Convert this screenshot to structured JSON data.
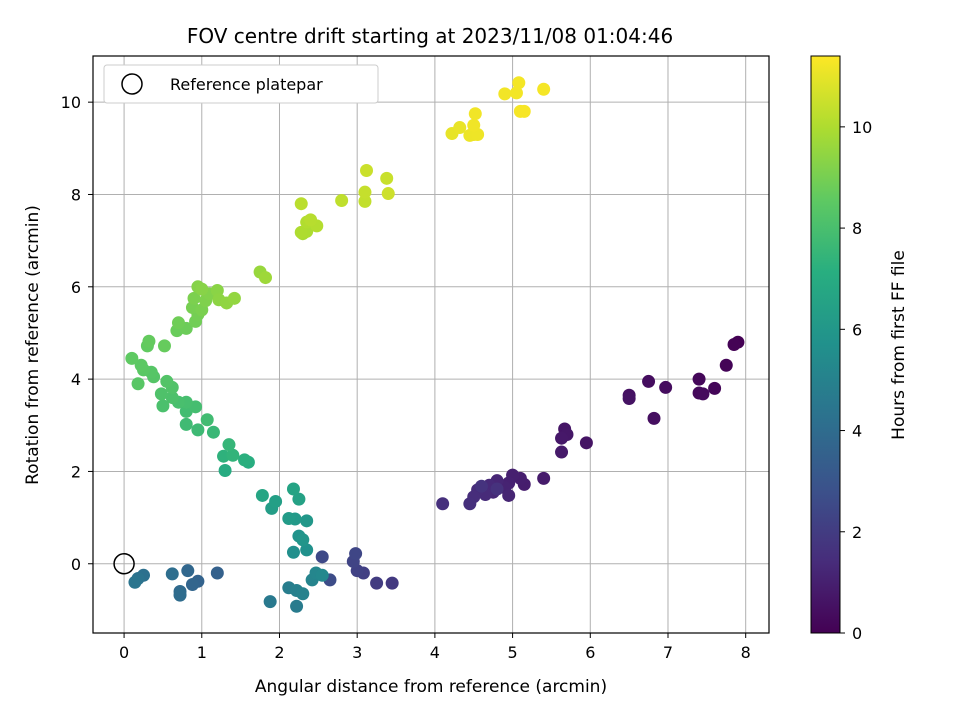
{
  "chart_data": {
    "type": "scatter",
    "title": "FOV centre drift starting at 2023/11/08 01:04:46",
    "xlabel": "Angular distance from reference (arcmin)",
    "ylabel": "Rotation from reference (arcmin)",
    "xlim": [
      -0.4,
      8.3
    ],
    "ylim": [
      -1.5,
      11.0
    ],
    "xticks": [
      "0",
      "1",
      "2",
      "3",
      "4",
      "5",
      "6",
      "7",
      "8"
    ],
    "yticks": [
      "0",
      "2",
      "4",
      "6",
      "8",
      "10"
    ],
    "grid": true,
    "legend": {
      "position": "top-left",
      "entries": [
        "Reference platepar"
      ]
    },
    "reference_point": {
      "x": 0,
      "y": 0
    },
    "colorbar": {
      "label": "Hours from first FF file",
      "colormap": "viridis",
      "range": [
        0,
        11.4
      ],
      "ticks": [
        "0",
        "2",
        "4",
        "6",
        "8",
        "10"
      ]
    },
    "points": [
      {
        "x": 7.9,
        "y": 4.8,
        "h": 0.0
      },
      {
        "x": 7.85,
        "y": 4.75,
        "h": 0.05
      },
      {
        "x": 7.75,
        "y": 4.3,
        "h": 0.1
      },
      {
        "x": 7.6,
        "y": 3.8,
        "h": 0.15
      },
      {
        "x": 7.4,
        "y": 4.0,
        "h": 0.2
      },
      {
        "x": 7.4,
        "y": 3.7,
        "h": 0.25
      },
      {
        "x": 7.45,
        "y": 3.68,
        "h": 0.3
      },
      {
        "x": 6.97,
        "y": 3.82,
        "h": 0.35
      },
      {
        "x": 6.75,
        "y": 3.95,
        "h": 0.4
      },
      {
        "x": 6.82,
        "y": 3.15,
        "h": 0.45
      },
      {
        "x": 6.5,
        "y": 3.65,
        "h": 0.5
      },
      {
        "x": 6.5,
        "y": 3.58,
        "h": 0.55
      },
      {
        "x": 5.95,
        "y": 2.62,
        "h": 0.6
      },
      {
        "x": 5.67,
        "y": 2.92,
        "h": 0.65
      },
      {
        "x": 5.7,
        "y": 2.8,
        "h": 0.7
      },
      {
        "x": 5.63,
        "y": 2.72,
        "h": 0.75
      },
      {
        "x": 5.63,
        "y": 2.42,
        "h": 0.8
      },
      {
        "x": 5.4,
        "y": 1.85,
        "h": 0.85
      },
      {
        "x": 5.15,
        "y": 1.72,
        "h": 0.9
      },
      {
        "x": 5.1,
        "y": 1.85,
        "h": 0.95
      },
      {
        "x": 5.0,
        "y": 1.92,
        "h": 1.0
      },
      {
        "x": 4.95,
        "y": 1.75,
        "h": 1.05
      },
      {
        "x": 4.9,
        "y": 1.65,
        "h": 1.1
      },
      {
        "x": 4.95,
        "y": 1.48,
        "h": 1.15
      },
      {
        "x": 4.8,
        "y": 1.8,
        "h": 1.2
      },
      {
        "x": 4.75,
        "y": 1.55,
        "h": 1.25
      },
      {
        "x": 4.7,
        "y": 1.7,
        "h": 1.3
      },
      {
        "x": 4.65,
        "y": 1.5,
        "h": 1.35
      },
      {
        "x": 4.55,
        "y": 1.6,
        "h": 1.4
      },
      {
        "x": 4.5,
        "y": 1.45,
        "h": 1.45
      },
      {
        "x": 4.45,
        "y": 1.3,
        "h": 1.5
      },
      {
        "x": 4.1,
        "y": 1.3,
        "h": 1.55
      },
      {
        "x": 4.8,
        "y": 1.62,
        "h": 1.6
      },
      {
        "x": 4.6,
        "y": 1.68,
        "h": 1.65
      },
      {
        "x": 3.45,
        "y": -0.42,
        "h": 1.9
      },
      {
        "x": 3.25,
        "y": -0.42,
        "h": 2.0
      },
      {
        "x": 3.08,
        "y": -0.2,
        "h": 2.1
      },
      {
        "x": 3.0,
        "y": -0.15,
        "h": 2.2
      },
      {
        "x": 2.95,
        "y": 0.05,
        "h": 2.3
      },
      {
        "x": 2.98,
        "y": 0.22,
        "h": 2.4
      },
      {
        "x": 2.55,
        "y": 0.15,
        "h": 2.5
      },
      {
        "x": 2.65,
        "y": -0.35,
        "h": 2.6
      },
      {
        "x": 1.2,
        "y": -0.2,
        "h": 3.5
      },
      {
        "x": 0.95,
        "y": -0.38,
        "h": 3.6
      },
      {
        "x": 0.88,
        "y": -0.45,
        "h": 3.7
      },
      {
        "x": 0.82,
        "y": -0.15,
        "h": 3.8
      },
      {
        "x": 0.72,
        "y": -0.6,
        "h": 3.9
      },
      {
        "x": 0.72,
        "y": -0.68,
        "h": 4.0
      },
      {
        "x": 0.62,
        "y": -0.22,
        "h": 4.1
      },
      {
        "x": 0.25,
        "y": -0.25,
        "h": 4.2
      },
      {
        "x": 0.18,
        "y": -0.32,
        "h": 4.3
      },
      {
        "x": 0.14,
        "y": -0.4,
        "h": 4.4
      },
      {
        "x": 1.88,
        "y": -0.82,
        "h": 4.6
      },
      {
        "x": 2.22,
        "y": -0.92,
        "h": 4.7
      },
      {
        "x": 2.12,
        "y": -0.52,
        "h": 4.8
      },
      {
        "x": 2.22,
        "y": -0.58,
        "h": 4.9
      },
      {
        "x": 2.3,
        "y": -0.65,
        "h": 5.0
      },
      {
        "x": 2.42,
        "y": -0.35,
        "h": 5.1
      },
      {
        "x": 2.47,
        "y": -0.2,
        "h": 5.2
      },
      {
        "x": 2.55,
        "y": -0.25,
        "h": 5.3
      },
      {
        "x": 2.18,
        "y": 0.25,
        "h": 5.6
      },
      {
        "x": 2.35,
        "y": 0.3,
        "h": 5.7
      },
      {
        "x": 2.25,
        "y": 0.6,
        "h": 5.8
      },
      {
        "x": 2.3,
        "y": 0.52,
        "h": 5.9
      },
      {
        "x": 2.35,
        "y": 0.93,
        "h": 6.0
      },
      {
        "x": 2.2,
        "y": 0.97,
        "h": 6.1
      },
      {
        "x": 2.12,
        "y": 0.98,
        "h": 6.2
      },
      {
        "x": 1.9,
        "y": 1.2,
        "h": 6.3
      },
      {
        "x": 1.95,
        "y": 1.35,
        "h": 6.4
      },
      {
        "x": 2.25,
        "y": 1.4,
        "h": 6.5
      },
      {
        "x": 2.18,
        "y": 1.62,
        "h": 6.6
      },
      {
        "x": 1.78,
        "y": 1.48,
        "h": 6.7
      },
      {
        "x": 1.3,
        "y": 2.02,
        "h": 7.0
      },
      {
        "x": 1.6,
        "y": 2.2,
        "h": 7.1
      },
      {
        "x": 1.55,
        "y": 2.25,
        "h": 7.2
      },
      {
        "x": 1.28,
        "y": 2.33,
        "h": 7.3
      },
      {
        "x": 1.4,
        "y": 2.35,
        "h": 7.4
      },
      {
        "x": 1.35,
        "y": 2.58,
        "h": 7.5
      },
      {
        "x": 1.15,
        "y": 2.85,
        "h": 7.6
      },
      {
        "x": 0.95,
        "y": 2.9,
        "h": 7.7
      },
      {
        "x": 0.8,
        "y": 3.02,
        "h": 7.75
      },
      {
        "x": 1.07,
        "y": 3.12,
        "h": 7.8
      },
      {
        "x": 0.8,
        "y": 3.3,
        "h": 7.85
      },
      {
        "x": 0.92,
        "y": 3.4,
        "h": 7.9
      },
      {
        "x": 0.8,
        "y": 3.5,
        "h": 7.95
      },
      {
        "x": 0.7,
        "y": 3.5,
        "h": 8.0
      },
      {
        "x": 0.5,
        "y": 3.42,
        "h": 8.05
      },
      {
        "x": 0.62,
        "y": 3.6,
        "h": 8.1
      },
      {
        "x": 0.48,
        "y": 3.68,
        "h": 8.15
      },
      {
        "x": 0.62,
        "y": 3.82,
        "h": 8.2
      },
      {
        "x": 0.55,
        "y": 3.95,
        "h": 8.25
      },
      {
        "x": 0.38,
        "y": 4.05,
        "h": 8.3
      },
      {
        "x": 0.35,
        "y": 4.15,
        "h": 8.35
      },
      {
        "x": 0.18,
        "y": 3.9,
        "h": 8.4
      },
      {
        "x": 0.25,
        "y": 4.2,
        "h": 8.45
      },
      {
        "x": 0.22,
        "y": 4.3,
        "h": 8.5
      },
      {
        "x": 0.1,
        "y": 4.45,
        "h": 8.55
      },
      {
        "x": 0.3,
        "y": 4.72,
        "h": 8.6
      },
      {
        "x": 0.32,
        "y": 4.82,
        "h": 8.65
      },
      {
        "x": 0.52,
        "y": 4.72,
        "h": 8.7
      },
      {
        "x": 0.68,
        "y": 5.05,
        "h": 8.75
      },
      {
        "x": 0.8,
        "y": 5.1,
        "h": 8.8
      },
      {
        "x": 0.7,
        "y": 5.22,
        "h": 8.85
      },
      {
        "x": 0.92,
        "y": 5.25,
        "h": 8.9
      },
      {
        "x": 0.95,
        "y": 5.4,
        "h": 8.95
      },
      {
        "x": 0.88,
        "y": 5.55,
        "h": 9.0
      },
      {
        "x": 1.0,
        "y": 5.5,
        "h": 9.05
      },
      {
        "x": 0.9,
        "y": 5.75,
        "h": 9.1
      },
      {
        "x": 1.05,
        "y": 5.7,
        "h": 9.15
      },
      {
        "x": 1.1,
        "y": 5.85,
        "h": 9.2
      },
      {
        "x": 0.95,
        "y": 6.0,
        "h": 9.25
      },
      {
        "x": 1.0,
        "y": 5.95,
        "h": 9.3
      },
      {
        "x": 1.2,
        "y": 5.92,
        "h": 9.35
      },
      {
        "x": 1.22,
        "y": 5.72,
        "h": 9.4
      },
      {
        "x": 1.32,
        "y": 5.65,
        "h": 9.45
      },
      {
        "x": 1.42,
        "y": 5.75,
        "h": 9.5
      },
      {
        "x": 1.75,
        "y": 6.32,
        "h": 9.6
      },
      {
        "x": 1.82,
        "y": 6.2,
        "h": 9.7
      },
      {
        "x": 2.3,
        "y": 7.15,
        "h": 9.9
      },
      {
        "x": 2.35,
        "y": 7.2,
        "h": 9.95
      },
      {
        "x": 2.28,
        "y": 7.18,
        "h": 10.0
      },
      {
        "x": 2.35,
        "y": 7.4,
        "h": 10.05
      },
      {
        "x": 2.48,
        "y": 7.32,
        "h": 10.1
      },
      {
        "x": 2.4,
        "y": 7.45,
        "h": 10.15
      },
      {
        "x": 2.28,
        "y": 7.8,
        "h": 10.2
      },
      {
        "x": 2.8,
        "y": 7.87,
        "h": 10.3
      },
      {
        "x": 3.1,
        "y": 7.85,
        "h": 10.35
      },
      {
        "x": 3.1,
        "y": 8.05,
        "h": 10.4
      },
      {
        "x": 3.38,
        "y": 8.35,
        "h": 10.45
      },
      {
        "x": 3.12,
        "y": 8.52,
        "h": 10.5
      },
      {
        "x": 3.4,
        "y": 8.02,
        "h": 10.55
      },
      {
        "x": 4.22,
        "y": 9.32,
        "h": 11.0
      },
      {
        "x": 4.32,
        "y": 9.45,
        "h": 11.05
      },
      {
        "x": 4.45,
        "y": 9.28,
        "h": 11.1
      },
      {
        "x": 4.5,
        "y": 9.3,
        "h": 11.12
      },
      {
        "x": 4.55,
        "y": 9.3,
        "h": 11.14
      },
      {
        "x": 4.5,
        "y": 9.5,
        "h": 11.16
      },
      {
        "x": 4.52,
        "y": 9.75,
        "h": 11.18
      },
      {
        "x": 4.9,
        "y": 10.18,
        "h": 11.2
      },
      {
        "x": 5.05,
        "y": 10.2,
        "h": 11.22
      },
      {
        "x": 5.08,
        "y": 10.42,
        "h": 11.24
      },
      {
        "x": 5.4,
        "y": 10.28,
        "h": 11.26
      },
      {
        "x": 5.1,
        "y": 9.8,
        "h": 11.28
      },
      {
        "x": 5.15,
        "y": 9.8,
        "h": 11.3
      }
    ]
  }
}
